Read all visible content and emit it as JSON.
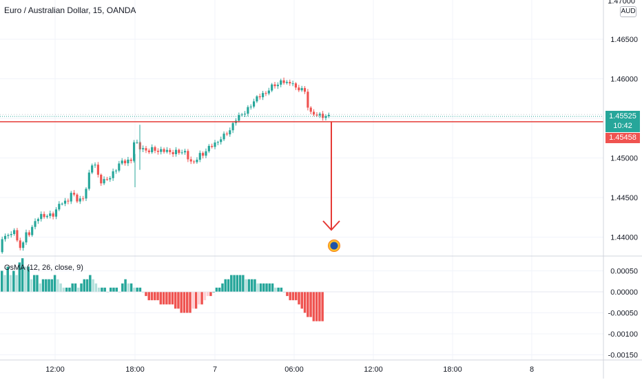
{
  "header": {
    "title": "Euro / Australian Dollar, 15, OANDA",
    "currency_tag": "AUD",
    "top_cut_label": "1.47000"
  },
  "price_badges": {
    "last_price": "1.45525",
    "countdown": "10:42",
    "horizontal_line_price": "1.45458"
  },
  "colors": {
    "up": "#26a69a",
    "down": "#ef5350",
    "hist_up_weak": "#b2dfdb",
    "hist_down_weak": "#ffcdd2",
    "arrow": "#e53935",
    "grid": "#f0f3fa"
  },
  "chart_data": [
    {
      "type": "candlestick",
      "title": "Euro / Australian Dollar, 15, OANDA",
      "y_ticks": [
        "1.46500",
        "1.46000",
        "1.45500",
        "1.45000",
        "1.44500",
        "1.44000"
      ],
      "x_ticks": [
        "12:00",
        "18:00",
        "7",
        "06:00",
        "12:00",
        "18:00",
        "8"
      ],
      "ylim": [
        1.4377,
        1.4703
      ],
      "last_price": 1.45525,
      "horizontal_line": 1.45458,
      "annotation": "downward arrow from 1.45458 toward 1.4410 with a target marker below",
      "path_points": [
        [
          0,
          1.4381
        ],
        [
          4,
          1.439
        ],
        [
          8,
          1.4402
        ],
        [
          12,
          1.4408
        ],
        [
          16,
          1.4397
        ],
        [
          22,
          1.4412
        ],
        [
          28,
          1.4391
        ],
        [
          34,
          1.4388
        ],
        [
          40,
          1.4403
        ],
        [
          46,
          1.4407
        ],
        [
          52,
          1.4418
        ],
        [
          58,
          1.4424
        ],
        [
          64,
          1.443
        ],
        [
          70,
          1.4425
        ],
        [
          76,
          1.4428
        ],
        [
          82,
          1.4431
        ],
        [
          88,
          1.4441
        ],
        [
          94,
          1.4444
        ],
        [
          100,
          1.4446
        ],
        [
          106,
          1.4455
        ],
        [
          112,
          1.445
        ],
        [
          118,
          1.4447
        ],
        [
          124,
          1.4448
        ],
        [
          130,
          1.4475
        ],
        [
          134,
          1.449
        ],
        [
          138,
          1.4496
        ],
        [
          142,
          1.4484
        ],
        [
          146,
          1.4474
        ],
        [
          150,
          1.4471
        ],
        [
          154,
          1.4471
        ],
        [
          160,
          1.4473
        ],
        [
          166,
          1.4482
        ],
        [
          172,
          1.4487
        ],
        [
          176,
          1.4492
        ],
        [
          180,
          1.4497
        ],
        [
          186,
          1.4497
        ],
        [
          190,
          1.4493
        ],
        [
          194,
          1.4498
        ],
        [
          198,
          1.4532
        ],
        [
          202,
          1.4515
        ],
        [
          206,
          1.4512
        ],
        [
          212,
          1.4509
        ],
        [
          220,
          1.4511
        ],
        [
          228,
          1.4509
        ],
        [
          236,
          1.451
        ],
        [
          244,
          1.4508
        ],
        [
          252,
          1.4508
        ],
        [
          260,
          1.4506
        ],
        [
          266,
          1.4509
        ],
        [
          272,
          1.4507
        ],
        [
          276,
          1.4497
        ],
        [
          280,
          1.4493
        ],
        [
          284,
          1.4496
        ],
        [
          290,
          1.4502
        ],
        [
          296,
          1.4503
        ],
        [
          300,
          1.4509
        ],
        [
          304,
          1.4513
        ],
        [
          310,
          1.4515
        ],
        [
          316,
          1.4519
        ],
        [
          322,
          1.4525
        ],
        [
          328,
          1.4527
        ],
        [
          334,
          1.4535
        ],
        [
          338,
          1.4538
        ],
        [
          342,
          1.4545
        ],
        [
          348,
          1.4552
        ],
        [
          354,
          1.4557
        ],
        [
          360,
          1.4557
        ],
        [
          366,
          1.4567
        ],
        [
          372,
          1.4574
        ],
        [
          378,
          1.4577
        ],
        [
          384,
          1.4581
        ],
        [
          390,
          1.4584
        ],
        [
          396,
          1.4588
        ],
        [
          400,
          1.4594
        ],
        [
          406,
          1.4593
        ],
        [
          412,
          1.4597
        ],
        [
          418,
          1.4595
        ],
        [
          422,
          1.4596
        ],
        [
          428,
          1.4594
        ],
        [
          432,
          1.4585
        ],
        [
          438,
          1.4591
        ],
        [
          444,
          1.4584
        ],
        [
          448,
          1.4568
        ],
        [
          452,
          1.4558
        ],
        [
          458,
          1.4556
        ],
        [
          464,
          1.4552
        ],
        [
          470,
          1.4555
        ],
        [
          474,
          1.4552
        ],
        [
          478,
          1.4552
        ]
      ]
    },
    {
      "type": "histogram",
      "title": "OsMA (12, 26, close, 9)",
      "y_ticks": [
        "0.00050",
        "0.00000",
        "-0.00050",
        "-0.00100",
        "-0.00150"
      ],
      "ylim": [
        -0.0016,
        0.0008
      ],
      "values": [
        0.0005,
        0.0004,
        0.0006,
        0.0004,
        0.0005,
        0.0004,
        0.0007,
        0.0008,
        0.0006,
        0.0006,
        0.0003,
        0.0004,
        0.0004,
        0.0002,
        0.0003,
        0.0003,
        0.0003,
        0.0003,
        0.0004,
        0.0003,
        0.0002,
        0.0001,
        0.0001,
        0.0001,
        0.0002,
        0.0002,
        0.0001,
        0.0002,
        0.0003,
        0.0003,
        0.0004,
        0.0003,
        0.0002,
        0.0001,
        0.0001,
        0.0001,
        0.0,
        0.0001,
        0.0001,
        0.0001,
        0.0,
        0.0002,
        0.0003,
        0.0002,
        0.0002,
        0.0001,
        0.0001,
        0.0001,
        0.0,
        -0.0001,
        -0.0002,
        -0.0002,
        -0.0002,
        -0.0002,
        -0.0003,
        -0.0003,
        -0.0003,
        -0.0003,
        -0.0003,
        -0.0004,
        -0.0004,
        -0.0005,
        -0.0005,
        -0.0005,
        -0.0005,
        -0.0004,
        -0.0004,
        -0.0003,
        -0.0003,
        -0.0002,
        -0.0001,
        -0.0001,
        0.0,
        0.0001,
        0.0001,
        0.0002,
        0.0003,
        0.0003,
        0.0004,
        0.0004,
        0.0004,
        0.0004,
        0.0004,
        0.0003,
        0.0003,
        0.0003,
        0.0003,
        0.0002,
        0.0002,
        0.0002,
        0.0002,
        0.0002,
        0.0002,
        0.0001,
        0.0001,
        0.0001,
        0.0,
        -0.0001,
        -0.0002,
        -0.0002,
        -0.0002,
        -0.0003,
        -0.0004,
        -0.0005,
        -0.0006,
        -0.0006,
        -0.0007,
        -0.0007,
        -0.0007,
        -0.0007
      ]
    }
  ]
}
